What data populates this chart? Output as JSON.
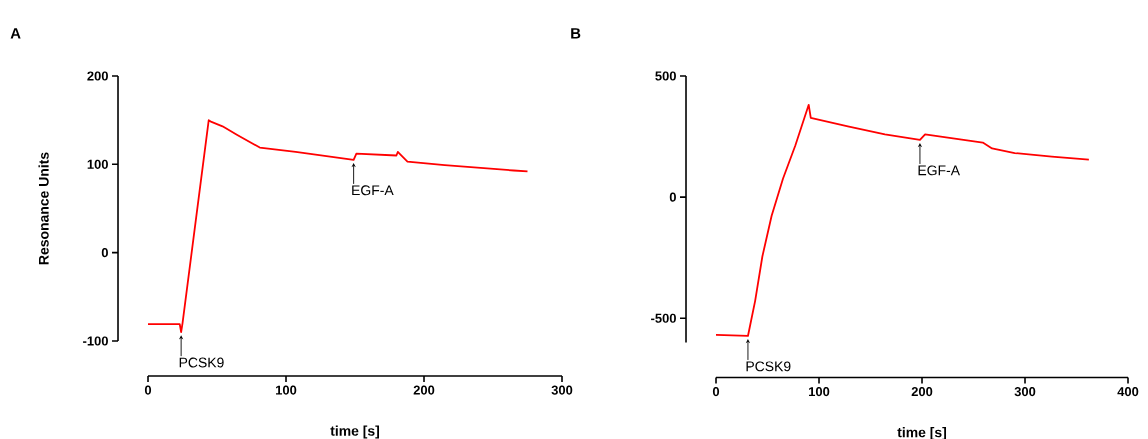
{
  "chart_data": [
    {
      "type": "line",
      "title": "A",
      "xlabel": "time [s]",
      "ylabel": "Resonance Units",
      "xlim": [
        0,
        300
      ],
      "ylim": [
        -100,
        200
      ],
      "xticks": [
        0,
        100,
        200,
        300
      ],
      "yticks": [
        -100,
        0,
        100,
        200
      ],
      "grid": false,
      "marker": "none",
      "line_style": "solid",
      "series": [
        {
          "color": "#ff0000",
          "x": [
            0,
            23,
            24,
            25,
            44,
            46,
            54,
            65,
            81,
            107,
            149,
            151,
            180,
            181,
            188,
            215,
            265,
            275
          ],
          "values": [
            -81,
            -81,
            -90,
            -80,
            150,
            148,
            143,
            133,
            119,
            114,
            105,
            112,
            110,
            114,
            103,
            99,
            93,
            92
          ]
        }
      ],
      "annotations": [
        {
          "text": "PCSK9",
          "x": 24,
          "y": -90
        },
        {
          "text": "EGF-A",
          "x": 149,
          "y": 105
        }
      ]
    },
    {
      "type": "line",
      "title": "B",
      "xlabel": "time [s]",
      "xlim": [
        0,
        400
      ],
      "ylim": [
        -600,
        500
      ],
      "xticks": [
        0,
        100,
        200,
        300,
        400
      ],
      "yticks": [
        -500,
        0,
        500
      ],
      "grid": false,
      "marker": "none",
      "line_style": "solid",
      "series": [
        {
          "color": "#ff0000",
          "x": [
            0,
            31,
            33,
            38,
            45,
            54,
            65,
            77,
            90,
            92,
            128,
            164,
            198,
            203,
            259,
            268,
            290,
            326,
            362
          ],
          "values": [
            -569,
            -573,
            -532,
            -428,
            -245,
            -77,
            76,
            213,
            381,
            327,
            292,
            259,
            236,
            259,
            225,
            201,
            182,
            167,
            155
          ]
        }
      ],
      "annotations": [
        {
          "text": "PCSK9",
          "x": 31,
          "y": -573
        },
        {
          "text": "EGF-A",
          "x": 198,
          "y": 236
        }
      ]
    }
  ]
}
